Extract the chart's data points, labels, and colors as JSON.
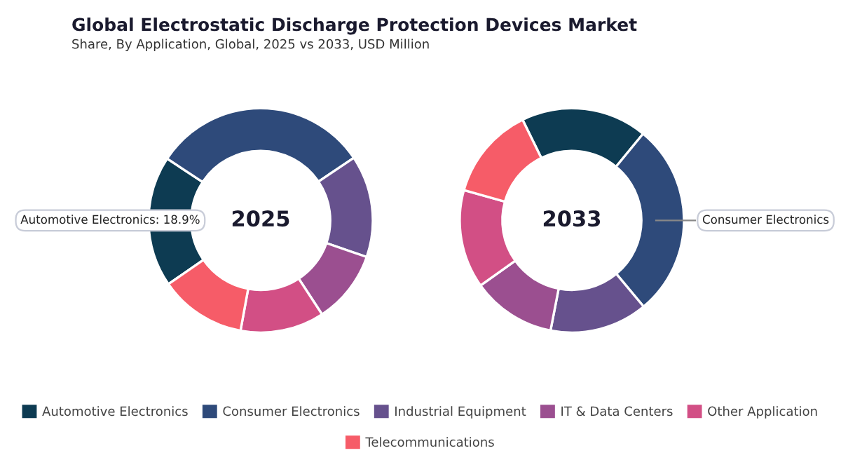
{
  "chart_data": [
    {
      "type": "donut",
      "title": "Global Electrostatic Discharge Protection Devices Market",
      "subtitle": "Share, By Application, Global, 2025 vs 2033, USD Million",
      "categories": [
        "Automotive Electronics",
        "Consumer Electronics",
        "Industrial Equipment",
        "IT & Data Centers",
        "Other Application",
        "Telecommunications"
      ],
      "values": [
        18.9,
        31.3,
        14.7,
        10.5,
        12.1,
        12.5
      ],
      "colors": [
        "#0d3b52",
        "#2e4a7a",
        "#66518d",
        "#9b4f90",
        "#d24f85",
        "#f65c68"
      ],
      "annotations": [
        "2025",
        "Automotive Electronics: 18.9%"
      ],
      "legend": "bottom"
    },
    {
      "type": "donut",
      "values": [
        18.2,
        28.0,
        14.1,
        12.1,
        14.2,
        13.4
      ],
      "colors": [
        "#0d3b52",
        "#2e4a7a",
        "#66518d",
        "#9b4f90",
        "#d24f85",
        "#f65c68"
      ],
      "annotations": [
        "2033",
        "Consumer Electronics"
      ]
    }
  ]
}
